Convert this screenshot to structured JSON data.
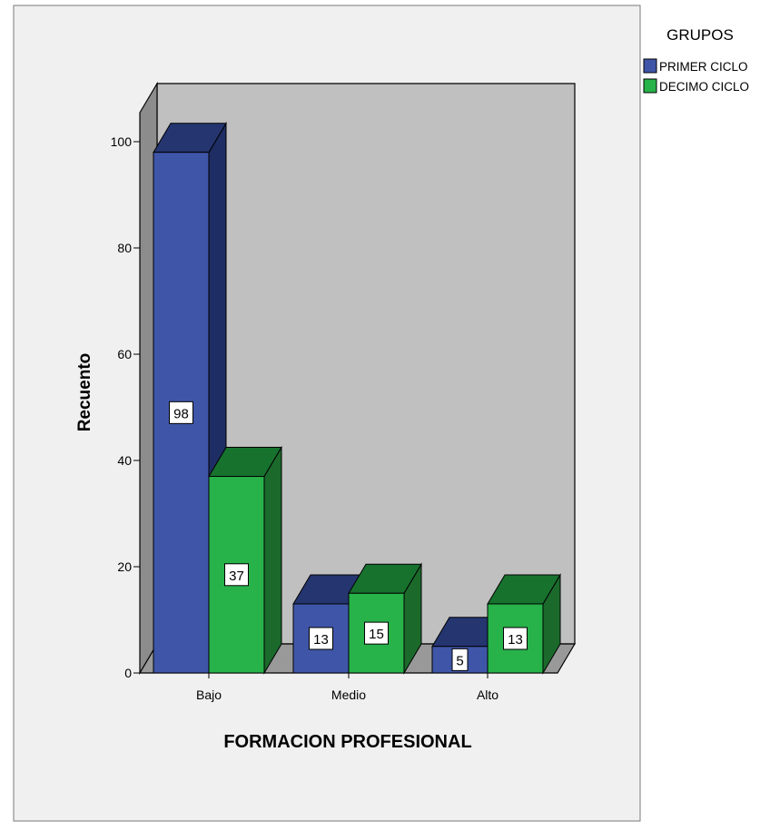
{
  "chart_data": {
    "type": "bar",
    "style": "3d-clustered",
    "categories": [
      "Bajo",
      "Medio",
      "Alto"
    ],
    "series": [
      {
        "name": "PRIMER CICLO",
        "values": [
          98,
          13,
          5
        ],
        "color": "#3F56A8"
      },
      {
        "name": "DECIMO CICLO",
        "values": [
          37,
          15,
          13
        ],
        "color": "#27B24A"
      }
    ],
    "xlabel": "FORMACION PROFESIONAL",
    "ylabel": "Recuento",
    "ylim": [
      0,
      100
    ],
    "yticks": [
      0,
      20,
      40,
      60,
      80,
      100
    ],
    "grid": false,
    "data_labels": true,
    "legend": {
      "title": "GRUPOS",
      "position": "top-right"
    }
  },
  "colors": {
    "page_background": "#F0F0F0",
    "back_wall": "#C0C0C0",
    "side_wall": "#8C8C8C",
    "floor": "#999999",
    "series_top_dark": [
      "#243570",
      "#17722E"
    ],
    "series_side_dark": [
      "#1E2D63",
      "#1B6A2C"
    ]
  }
}
